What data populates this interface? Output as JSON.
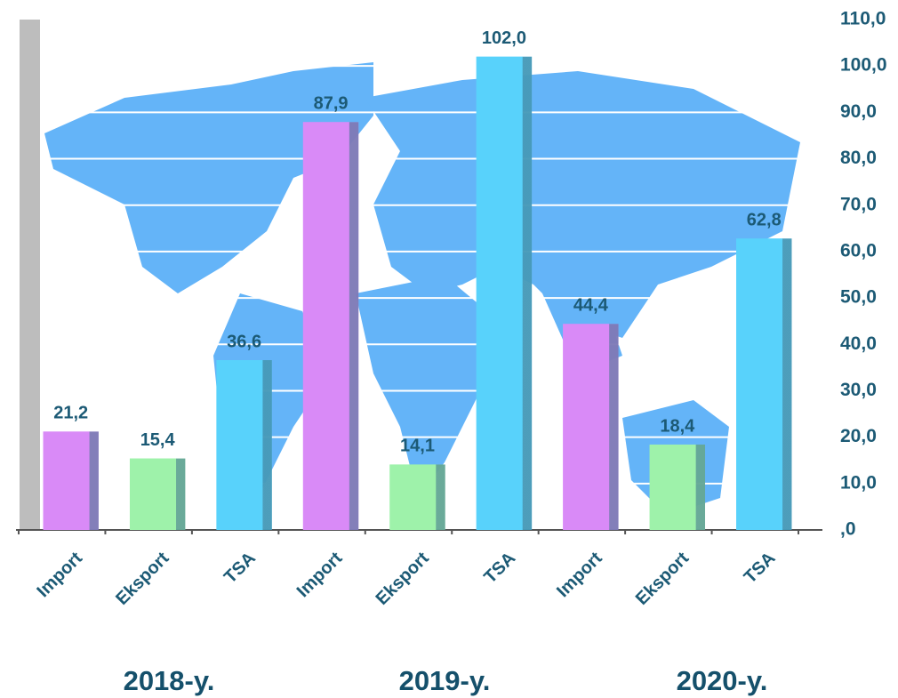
{
  "chart_data": {
    "type": "bar",
    "categories": [
      "Import",
      "Eksport",
      "TSA",
      "Import",
      "Eksport",
      "TSA",
      "Import",
      "Eksport",
      "TSA"
    ],
    "groups": [
      "2018-y.",
      "2019-y.",
      "2020-y."
    ],
    "values": [
      21.2,
      15.4,
      36.6,
      87.9,
      14.1,
      102.0,
      44.4,
      18.4,
      62.8
    ],
    "value_labels": [
      "21,2",
      "15,4",
      "36,6",
      "87,9",
      "14,1",
      "102,0",
      "44,4",
      "18,4",
      "62,8"
    ],
    "colors": [
      "#d98af7",
      "#9ef2aa",
      "#58d2fb",
      "#d98af7",
      "#9ef2aa",
      "#58d2fb",
      "#d98af7",
      "#9ef2aa",
      "#58d2fb"
    ],
    "ylim": [
      0,
      110
    ],
    "yticks": [
      {
        "value": 0,
        "label": ",0"
      },
      {
        "value": 10,
        "label": "10,0"
      },
      {
        "value": 20,
        "label": "20,0"
      },
      {
        "value": 30,
        "label": "30,0"
      },
      {
        "value": 40,
        "label": "40,0"
      },
      {
        "value": 50,
        "label": "50,0"
      },
      {
        "value": 60,
        "label": "60,0"
      },
      {
        "value": 70,
        "label": "70,0"
      },
      {
        "value": 80,
        "label": "80,0"
      },
      {
        "value": 90,
        "label": "90,0"
      },
      {
        "value": 100,
        "label": "100,0"
      },
      {
        "value": 110,
        "label": "110,0"
      }
    ],
    "grid": true,
    "y_axis_side": "right"
  }
}
